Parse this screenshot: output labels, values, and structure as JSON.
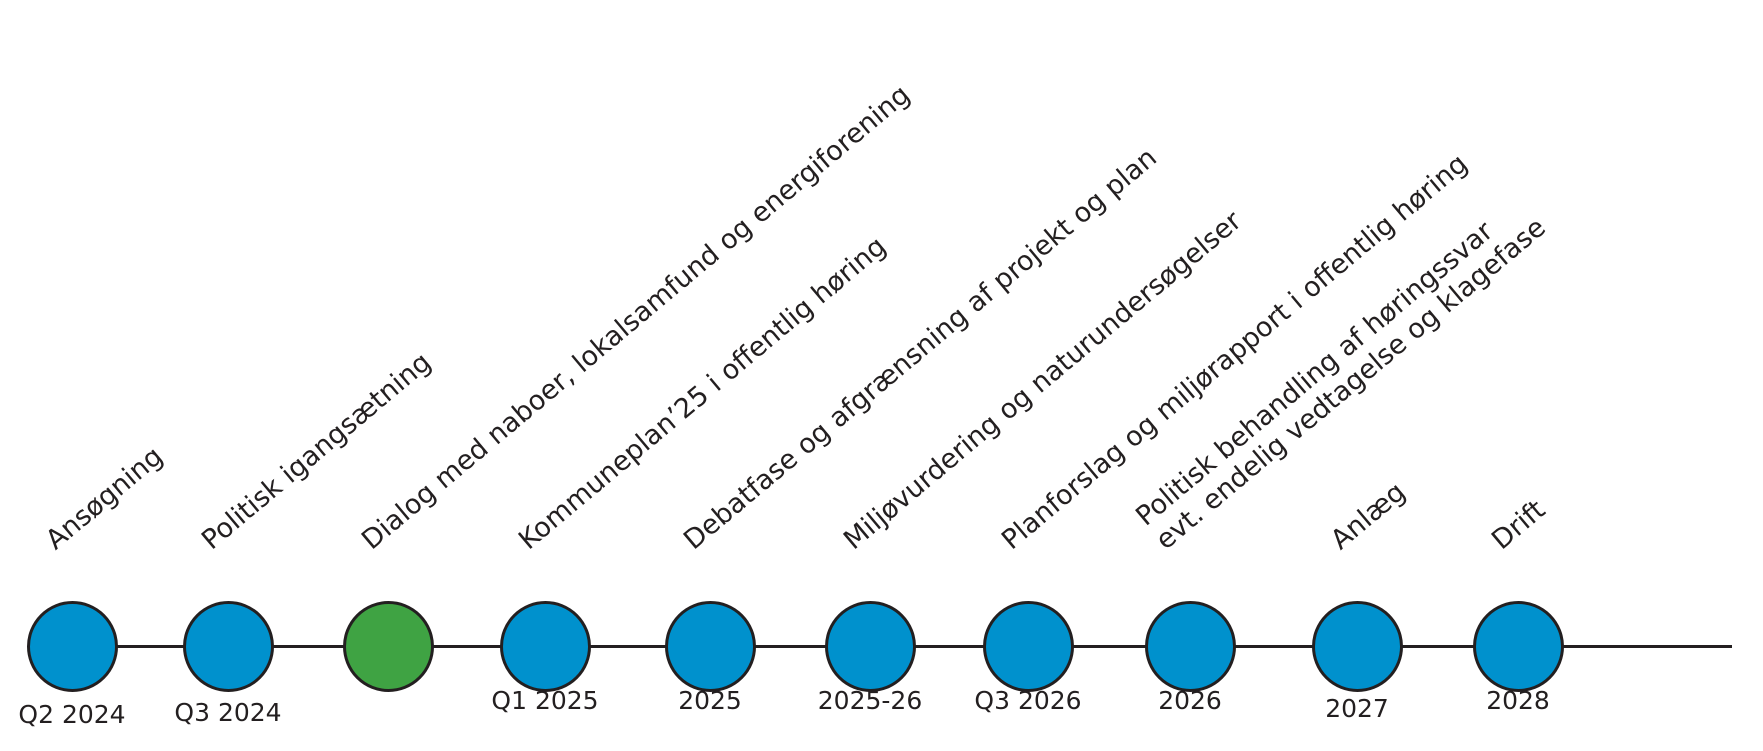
{
  "colors": {
    "node_default": "#0091cd",
    "node_current": "#3fa343",
    "line": "#231f20",
    "text": "#231f20"
  },
  "steps": [
    {
      "label": [
        "Ansøgning"
      ],
      "date": "Q2 2024",
      "status": "default"
    },
    {
      "label": [
        "Politisk igangsætning"
      ],
      "date": "Q3 2024",
      "status": "default"
    },
    {
      "label": [
        "Dialog med naboer, lokalsamfund og energiforening"
      ],
      "date": "",
      "status": "current"
    },
    {
      "label": [
        "Kommuneplan’25 i offentlig høring"
      ],
      "date": "Q1 2025",
      "status": "default"
    },
    {
      "label": [
        "Debatfase og afgrænsning af projekt og plan"
      ],
      "date": "2025",
      "status": "default"
    },
    {
      "label": [
        "Miljøvurdering og naturundersøgelser"
      ],
      "date": "2025-26",
      "status": "default"
    },
    {
      "label": [
        "Planforslag og miljørapport i offentlig høring"
      ],
      "date": "Q3 2026",
      "status": "default"
    },
    {
      "label": [
        "Politisk behandling af høringssvar",
        "evt. endelig vedtagelse og klagefase"
      ],
      "date": "2026",
      "status": "default"
    },
    {
      "label": [
        "Anlæg"
      ],
      "date": "2027",
      "status": "default"
    },
    {
      "label": [
        "Drift"
      ],
      "date": "2028",
      "status": "default"
    }
  ]
}
